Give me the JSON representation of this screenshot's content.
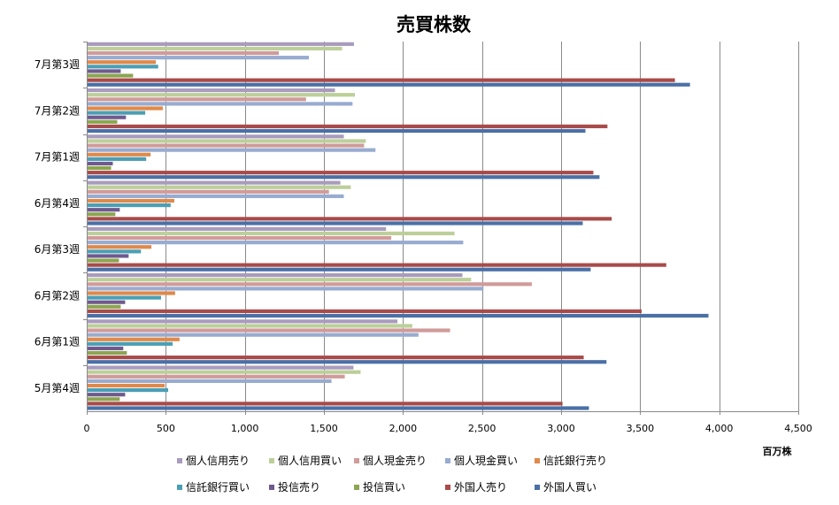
{
  "chart_data": {
    "type": "bar",
    "orientation": "horizontal",
    "title": "売買株数",
    "xlabel": "百万株",
    "ylabel": "",
    "xlim": [
      0,
      4500
    ],
    "xticks": [
      0,
      500,
      1000,
      1500,
      2000,
      2500,
      3000,
      3500,
      4000,
      4500
    ],
    "xtick_labels": [
      "0",
      "500",
      "1,000",
      "1,500",
      "2,000",
      "2,500",
      "3,000",
      "3,500",
      "4,000",
      "4,500"
    ],
    "grid": true,
    "legend_position": "bottom",
    "categories": [
      "7月第3週",
      "7月第2週",
      "7月第1週",
      "6月第4週",
      "6月第3週",
      "6月第2週",
      "6月第1週",
      "5月第4週"
    ],
    "series": [
      {
        "name": "個人信用売り",
        "color": "#a99bbd",
        "values": [
          1690,
          1570,
          1626,
          1604,
          1893,
          2376,
          1965,
          1687
        ]
      },
      {
        "name": "個人信用買い",
        "color": "#bccf9a",
        "values": [
          1615,
          1696,
          1765,
          1670,
          2326,
          2431,
          2059,
          1732
        ]
      },
      {
        "name": "個人現金売り",
        "color": "#d09b9a",
        "values": [
          1215,
          1387,
          1754,
          1532,
          1926,
          2815,
          2298,
          1632
        ]
      },
      {
        "name": "個人現金買い",
        "color": "#98abd0",
        "values": [
          1405,
          1681,
          1826,
          1626,
          2381,
          2509,
          2098,
          1548
        ]
      },
      {
        "name": "信託銀行売り",
        "color": "#e0894a",
        "values": [
          437,
          481,
          404,
          554,
          409,
          559,
          587,
          493
        ]
      },
      {
        "name": "信託銀行買い",
        "color": "#4b9fb5",
        "values": [
          452,
          370,
          376,
          531,
          343,
          470,
          543,
          515
        ]
      },
      {
        "name": "投信売り",
        "color": "#6f5a8e",
        "values": [
          215,
          248,
          165,
          209,
          265,
          243,
          231,
          243
        ]
      },
      {
        "name": "投信買い",
        "color": "#8ba551",
        "values": [
          293,
          193,
          154,
          181,
          204,
          215,
          254,
          209
        ]
      },
      {
        "name": "外国人売り",
        "color": "#a84b49",
        "values": [
          3720,
          3293,
          3204,
          3320,
          3665,
          3509,
          3143,
          3009
        ]
      },
      {
        "name": "外国人買い",
        "color": "#4a70a6",
        "values": [
          3815,
          3154,
          3243,
          3137,
          3187,
          3932,
          3287,
          3176
        ]
      }
    ]
  }
}
